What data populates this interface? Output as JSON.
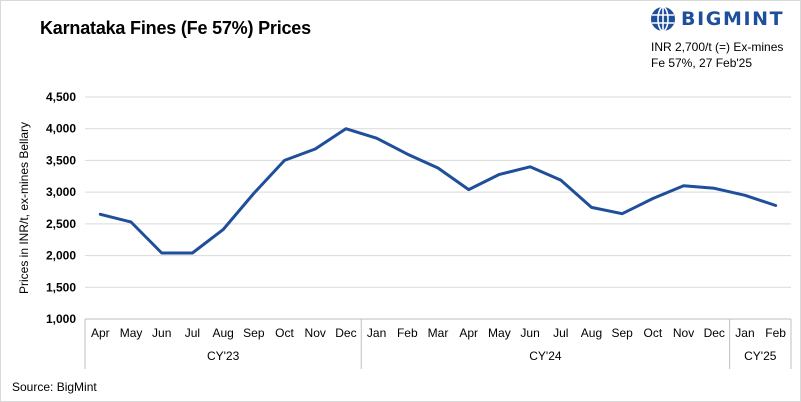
{
  "title": "Karnataka Fines (Fe 57%) Prices",
  "brand": {
    "name": "BIGMINT",
    "color": "#1f4e9a",
    "icon": "globe-logo-icon"
  },
  "note": {
    "line1": "INR 2,700/t (=) Ex-mines",
    "line2": "Fe 57%, 27 Feb'25"
  },
  "source": "Source: BigMint",
  "chart_data": {
    "type": "line",
    "ylabel": "Prices in INR/t, ex-mines Bellary",
    "ylim": [
      1000,
      4500
    ],
    "yticks": [
      "4,500",
      "4,000",
      "3,500",
      "3,000",
      "2,500",
      "2,000",
      "1,500",
      "1,000"
    ],
    "ytick_values": [
      4500,
      4000,
      3500,
      3000,
      2500,
      2000,
      1500,
      1000
    ],
    "grid": true,
    "line_color": "#1f4e9a",
    "categories": [
      "Apr",
      "May",
      "Jun",
      "Jul",
      "Aug",
      "Sep",
      "Oct",
      "Nov",
      "Dec",
      "Jan",
      "Feb",
      "Mar",
      "Apr",
      "May",
      "Jun",
      "Jul",
      "Aug",
      "Sep",
      "Oct",
      "Nov",
      "Dec",
      "Jan",
      "Feb"
    ],
    "groups": [
      {
        "label": "CY'23",
        "count": 9
      },
      {
        "label": "CY'24",
        "count": 12
      },
      {
        "label": "CY'25",
        "count": 2
      }
    ],
    "series": [
      {
        "values": [
          2650,
          2530,
          2040,
          2040,
          2410,
          2980,
          3500,
          3680,
          4000,
          3850,
          3600,
          3380,
          3040,
          3280,
          3400,
          3190,
          2760,
          2660,
          2900,
          3100,
          3060,
          2950,
          2790
        ]
      }
    ]
  }
}
